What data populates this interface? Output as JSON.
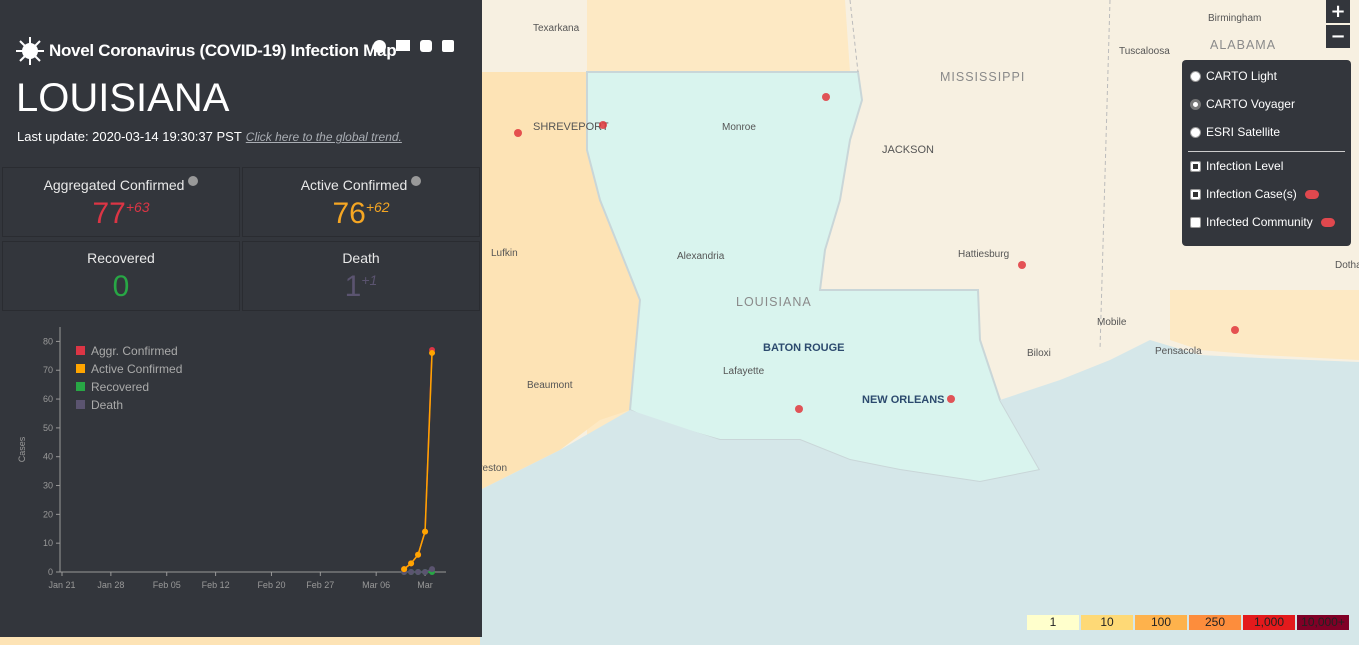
{
  "panel": {
    "title": "Novel Coronavirus (COVID-19) Infection Map",
    "region": "LOUISIANA",
    "last_update": "Last update: 2020-03-14 19:30:37 PST",
    "trend_link": "Click here to the global trend.",
    "stats": [
      {
        "label": "Aggregated Confirmed",
        "value": 77,
        "delta": "+63",
        "color": "#dc3545"
      },
      {
        "label": "Active Confirmed",
        "value": 76,
        "delta": "+62",
        "color": "#f5a623"
      },
      {
        "label": "Recovered",
        "value": 0,
        "color": "#28a745"
      },
      {
        "label": "Death",
        "value": 1,
        "delta": "+1",
        "color": "#5b5470"
      }
    ]
  },
  "chart": {
    "type": "line",
    "y_label": "Cases",
    "x": [
      "Mar 10",
      "Mar 11",
      "Mar 12",
      "Mar 13",
      "Mar 14"
    ],
    "xlim": [
      "Jan 21",
      "Mar 16"
    ],
    "xticks": [
      "Jan 21",
      "Jan 28",
      "Feb 05",
      "Feb 12",
      "Feb 20",
      "Feb 27",
      "Mar 06",
      {
        "value": "Mar 13",
        "label": "Mar"
      }
    ],
    "ylim": [
      0,
      85
    ],
    "yticks": [
      0,
      10,
      20,
      30,
      40,
      50,
      60,
      70,
      80
    ],
    "series": [
      {
        "name": "Aggr. Confirmed",
        "color": "#dc3545",
        "values": [
          1,
          3,
          6,
          14,
          77
        ]
      },
      {
        "name": "Active Confirmed",
        "color": "#ffa500",
        "values": [
          1,
          3,
          6,
          14,
          76
        ]
      },
      {
        "name": "Recovered",
        "color": "#28a745",
        "values": [
          0,
          0,
          0,
          0,
          0
        ]
      },
      {
        "name": "Death",
        "color": "#5b5470",
        "values": [
          0,
          0,
          0,
          0,
          1
        ]
      }
    ]
  },
  "map": {
    "labels": [
      "Texarkana",
      "Birmingham",
      "ALABAMA",
      "Tuscaloosa",
      "MISSISSIPPI",
      "SHREVEPORT",
      "Monroe",
      "JACKSON",
      "Lufkin",
      "Alexandria",
      "Hattiesburg",
      "LOUISIANA",
      "Mobile",
      "Pensacola",
      "BATON ROUGE",
      "Biloxi",
      "Lafayette",
      "Beaumont",
      "NEW ORLEANS",
      "Dothan",
      "Galveston"
    ]
  },
  "layers": {
    "base": [
      {
        "name": "CARTO Light",
        "selected": false
      },
      {
        "name": "CARTO Voyager",
        "selected": true
      },
      {
        "name": "ESRI Satellite",
        "selected": false
      }
    ],
    "overlays": [
      {
        "name": "Infection Level",
        "checked": true
      },
      {
        "name": "Infection Case(s)",
        "checked": true
      },
      {
        "name": "Infected Community",
        "checked": false
      }
    ]
  },
  "legend": [
    "1",
    "10",
    "100",
    "250",
    "1,000",
    "10,000+"
  ]
}
